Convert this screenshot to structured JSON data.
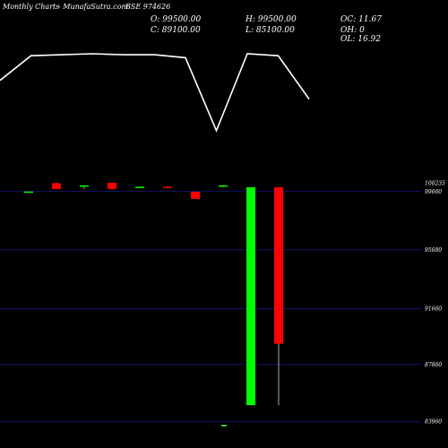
{
  "header": {
    "period": "Monthly Charts",
    "source": "- MunafaSutra.com",
    "symbol": "BSE 974626"
  },
  "ohlc": {
    "open": "O: 99500.00",
    "high": "H: 99500.00",
    "oc": "OC: 11.67",
    "close": "C: 89100.00",
    "low": "L: 85100.00",
    "oh": "OH: 0",
    "ol": "OL: 16.92"
  },
  "chart_data": {
    "type": "candlestick",
    "y_ticks": [
      {
        "label": "100235",
        "value": 100235
      },
      {
        "label": "99660",
        "value": 99660
      },
      {
        "label": "95680",
        "value": 95680
      },
      {
        "label": "91660",
        "value": 91660
      },
      {
        "label": "87860",
        "value": 87860
      },
      {
        "label": "83960",
        "value": 83960
      }
    ],
    "ylim": [
      83700,
      100500
    ],
    "upper_line": [
      0.73,
      0.98,
      0.99,
      1.0,
      0.99,
      0.99,
      0.96,
      0.22,
      1.0,
      0.98,
      0.54
    ],
    "candles": [
      {
        "open": 99640,
        "high": 99660,
        "low": 99620,
        "close": 99660
      },
      {
        "open": 100230,
        "high": 100250,
        "low": 99830,
        "close": 99830
      },
      {
        "open": 100000,
        "high": 100080,
        "low": 99840,
        "close": 100080
      },
      {
        "open": 100250,
        "high": 100250,
        "low": 99840,
        "close": 99840
      },
      {
        "open": 99960,
        "high": 99980,
        "low": 99930,
        "close": 99980
      },
      {
        "open": 99990,
        "high": 100000,
        "low": 99930,
        "close": 99980
      },
      {
        "open": 99640,
        "high": 99640,
        "low": 99160,
        "close": 99160
      },
      {
        "open": 100000,
        "high": 100080,
        "low": 99960,
        "close": 100080
      },
      {
        "open": 85100,
        "high": 99950,
        "low": 85100,
        "close": 99950
      },
      {
        "open": 99950,
        "high": 99950,
        "low": 85080,
        "close": 89280
      }
    ],
    "bottom_tick_color": "#2ecc40",
    "colors": {
      "up": "#00ff00",
      "down": "#ff0000",
      "line": "#ffffff",
      "grid": "#1a1a8c",
      "wick": "#aaaaaa"
    }
  }
}
